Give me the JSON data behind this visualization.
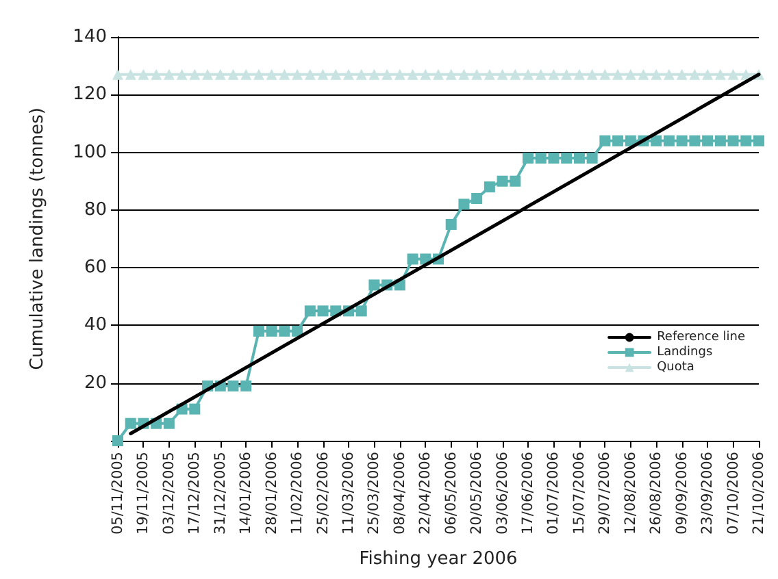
{
  "chart_data": {
    "type": "line",
    "xlabel": "Fishing year 2006",
    "ylabel": "Cumulative landings (tonnes)",
    "categories": [
      "05/11/2005",
      null,
      "19/11/2005",
      null,
      "03/12/2005",
      null,
      "17/12/2005",
      null,
      "31/12/2005",
      null,
      "14/01/2006",
      null,
      "28/01/2006",
      null,
      "11/02/2006",
      null,
      "25/02/2006",
      null,
      "11/03/2006",
      null,
      "25/03/2006",
      null,
      "08/04/2006",
      null,
      "22/04/2006",
      null,
      "06/05/2006",
      null,
      "20/05/2006",
      null,
      "03/06/2006",
      null,
      "17/06/2006",
      null,
      "01/07/2006",
      null,
      "15/07/2006",
      null,
      "29/07/2006",
      null,
      "12/08/2006",
      null,
      "26/08/2006",
      null,
      "09/09/2006",
      null,
      "23/09/2006",
      null,
      "07/10/2006",
      null,
      "21/10/2006"
    ],
    "series": [
      {
        "name": "Reference line",
        "color": "#000000",
        "marker": "none",
        "values": [
          null,
          2.5,
          null,
          null,
          null,
          null,
          null,
          null,
          null,
          null,
          null,
          null,
          null,
          null,
          null,
          null,
          null,
          null,
          null,
          null,
          null,
          null,
          null,
          null,
          null,
          null,
          null,
          null,
          null,
          null,
          null,
          null,
          null,
          null,
          null,
          null,
          null,
          null,
          null,
          null,
          null,
          null,
          null,
          null,
          null,
          null,
          null,
          null,
          null,
          null,
          127
        ]
      },
      {
        "name": "Landings",
        "color": "#5ab4b2",
        "marker": "square",
        "values": [
          0,
          6,
          6,
          6,
          6,
          11,
          11,
          19,
          19,
          19,
          19,
          38,
          38,
          38,
          38,
          45,
          45,
          45,
          45,
          45,
          54,
          54,
          54,
          63,
          63,
          63,
          75,
          82,
          84,
          88,
          90,
          90,
          98,
          98,
          98,
          98,
          98,
          98,
          104,
          104,
          104,
          104,
          104,
          104,
          104,
          104,
          104,
          104,
          104,
          104,
          104
        ]
      },
      {
        "name": "Quota",
        "color": "#c8e3e1",
        "marker": "triangle",
        "values": [
          127,
          127,
          127,
          127,
          127,
          127,
          127,
          127,
          127,
          127,
          127,
          127,
          127,
          127,
          127,
          127,
          127,
          127,
          127,
          127,
          127,
          127,
          127,
          127,
          127,
          127,
          127,
          127,
          127,
          127,
          127,
          127,
          127,
          127,
          127,
          127,
          127,
          127,
          127,
          127,
          127,
          127,
          127,
          127,
          127,
          127,
          127,
          127,
          127,
          127,
          127
        ]
      }
    ],
    "ylim": [
      0,
      140
    ],
    "yticks": [
      {
        "value": 0,
        "label": null
      },
      20,
      40,
      60,
      80,
      100,
      120,
      140
    ],
    "grid": "y",
    "legend": "right"
  }
}
